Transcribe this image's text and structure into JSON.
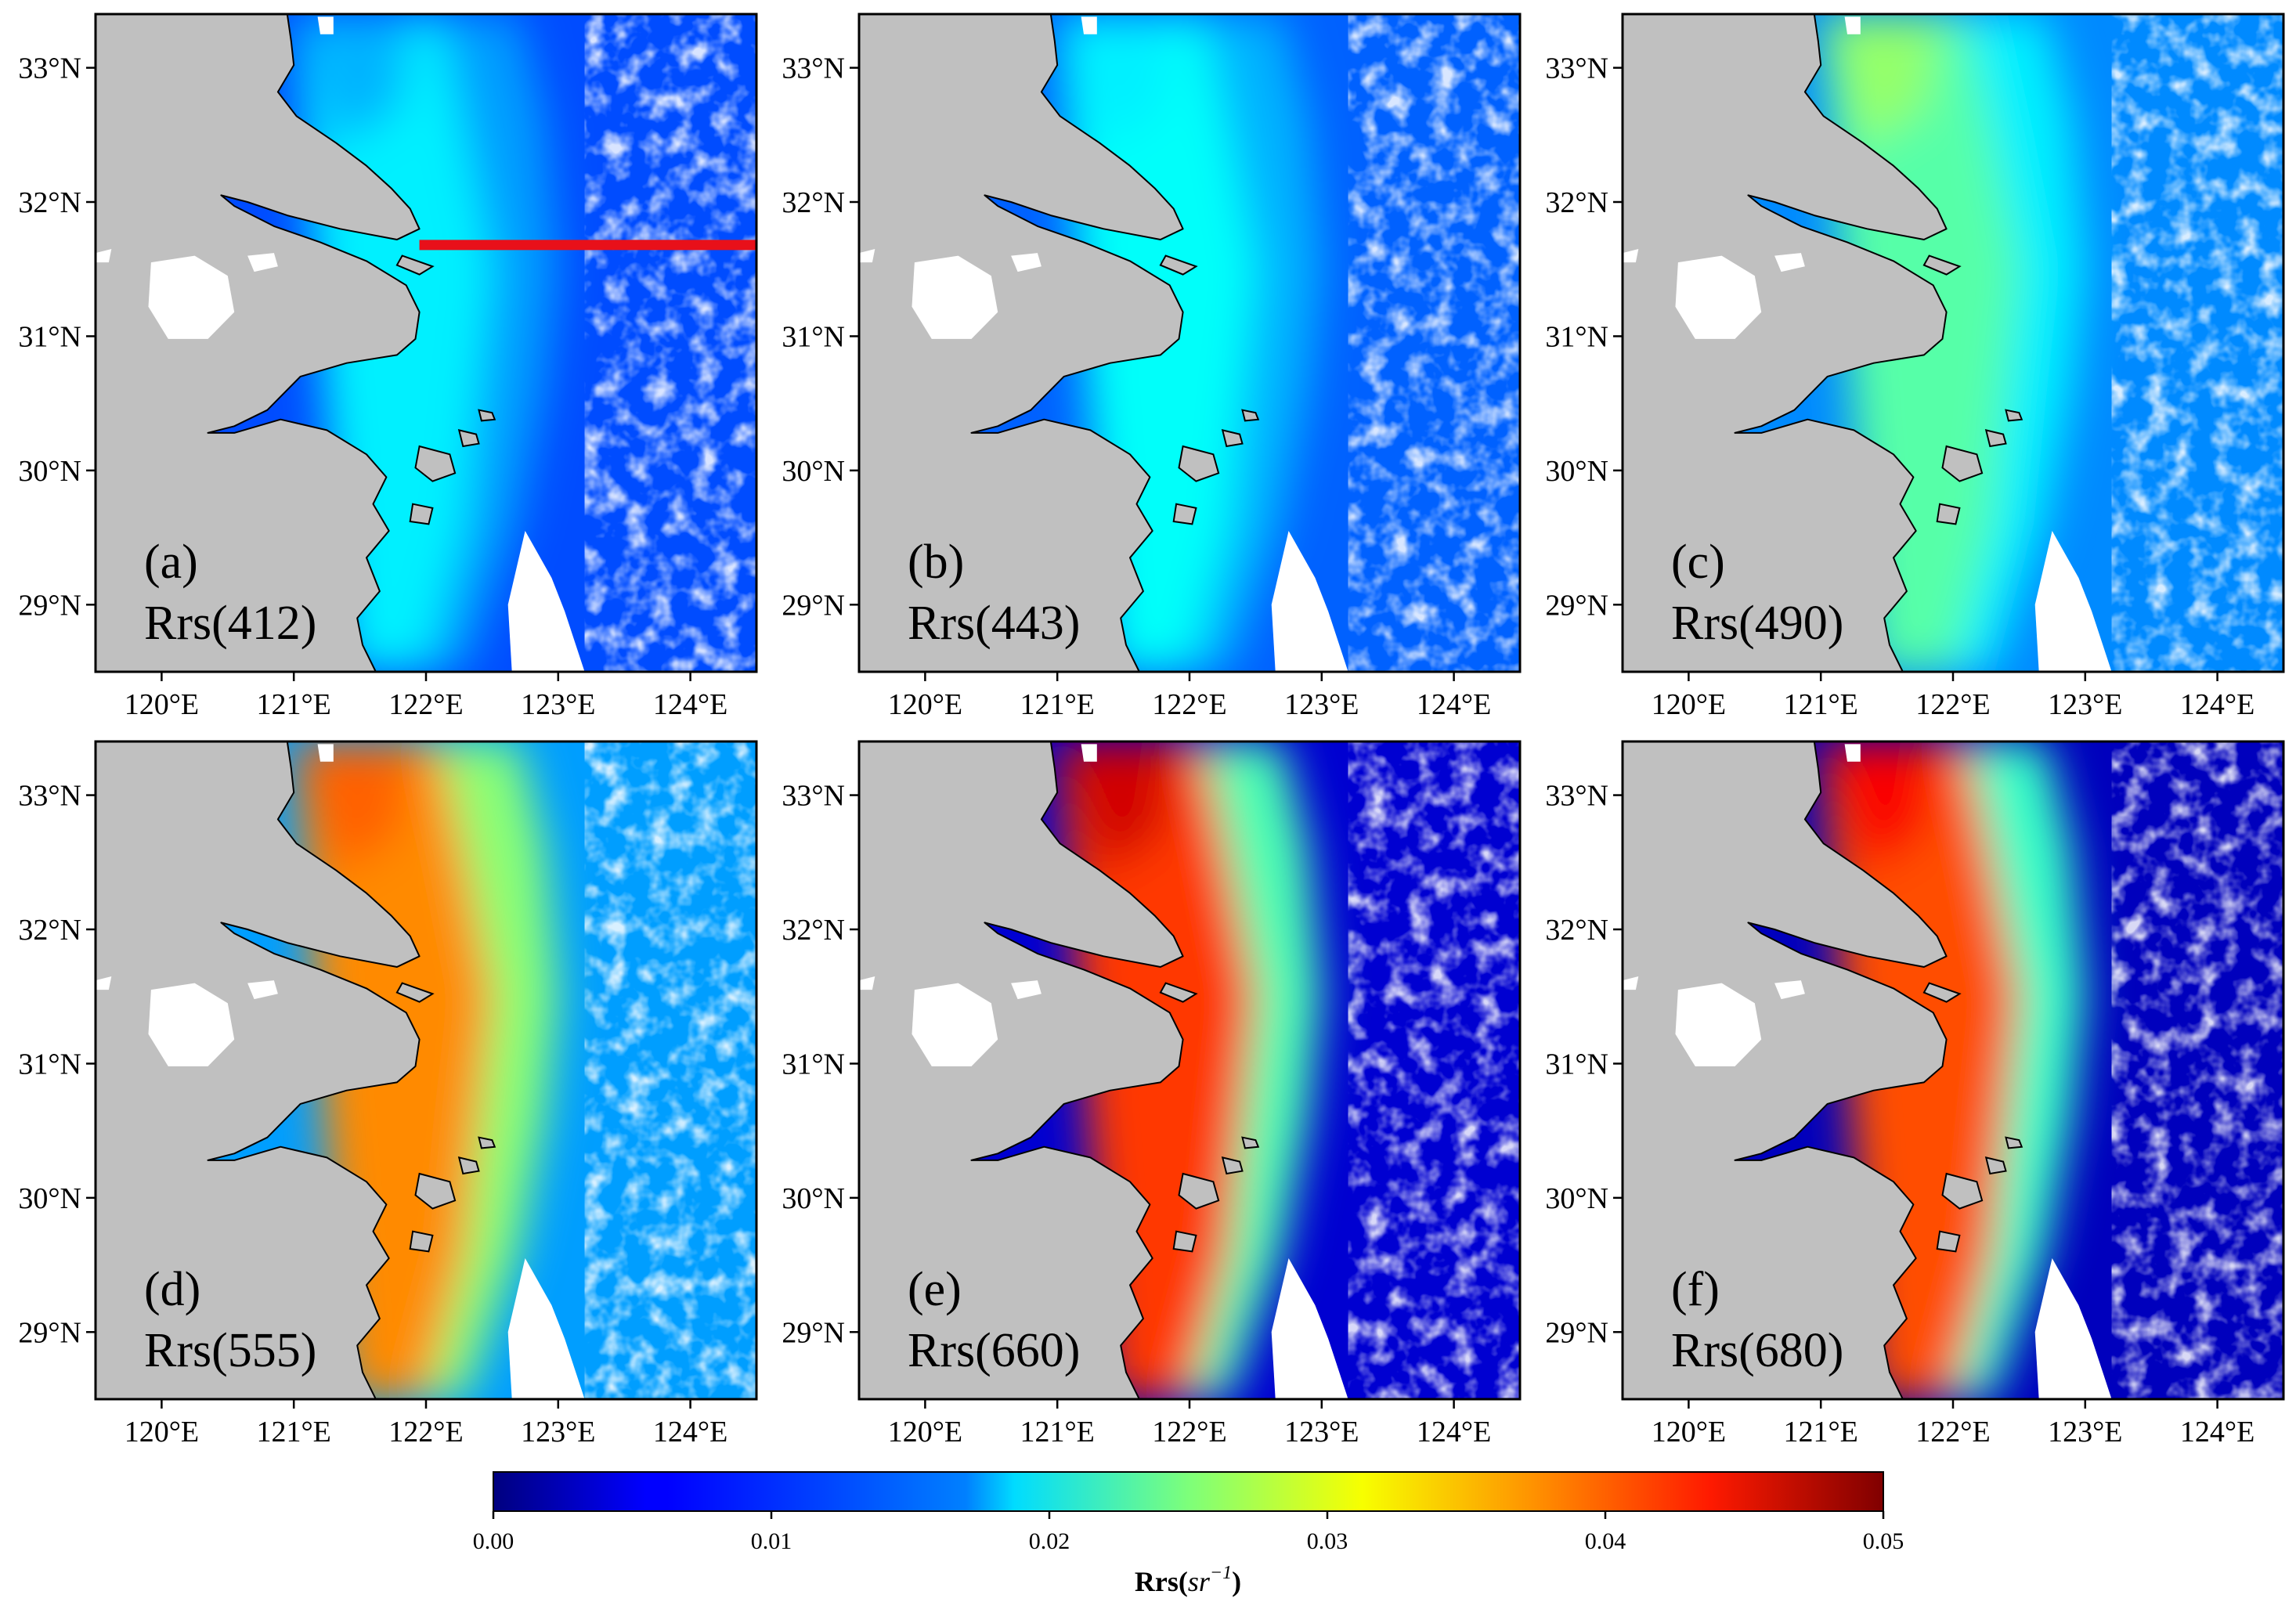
{
  "figure": {
    "lon_ticks": [
      "120°E",
      "121°E",
      "122°E",
      "123°E",
      "124°E"
    ],
    "lat_ticks": [
      "33°N",
      "32°N",
      "31°N",
      "30°N",
      "29°N"
    ],
    "lon_values": [
      120,
      121,
      122,
      123,
      124
    ],
    "lat_values": [
      33,
      32,
      31,
      30,
      29
    ],
    "lon_range": [
      119.5,
      124.5
    ],
    "lat_range": [
      28.5,
      33.4
    ],
    "panels": [
      {
        "id": "a",
        "label": "(a)",
        "band": "Rrs(412)",
        "offshore_level": 0.01,
        "plume_level": 0.018,
        "north_level": 0.015
      },
      {
        "id": "b",
        "label": "(b)",
        "band": "Rrs(443)",
        "offshore_level": 0.011,
        "plume_level": 0.019,
        "north_level": 0.018
      },
      {
        "id": "c",
        "label": "(c)",
        "band": "Rrs(490)",
        "offshore_level": 0.013,
        "plume_level": 0.023,
        "north_level": 0.026
      },
      {
        "id": "d",
        "label": "(d)",
        "band": "Rrs(555)",
        "offshore_level": 0.014,
        "plume_level": 0.037,
        "north_level": 0.039
      },
      {
        "id": "e",
        "label": "(e)",
        "band": "Rrs(660)",
        "offshore_level": 0.004,
        "plume_level": 0.041,
        "north_level": 0.046
      },
      {
        "id": "f",
        "label": "(f)",
        "band": "Rrs(680)",
        "offshore_level": 0.003,
        "plume_level": 0.04,
        "north_level": 0.044
      }
    ],
    "transect": {
      "panel": "a",
      "lat": 31.68,
      "lon_start": 121.95,
      "lon_end": 124.5,
      "color": "#e8101a"
    },
    "colorbar": {
      "min": 0.0,
      "max": 0.05,
      "tick_labels": [
        "0.00",
        "0.01",
        "0.02",
        "0.03",
        "0.04",
        "0.05"
      ],
      "title_prefix": "Rrs(",
      "title_unit": "sr",
      "title_exponent": "−1",
      "title_suffix": ")",
      "colormap": "jet"
    },
    "colors": {
      "land": "#c0c0c0",
      "coast": "#000000",
      "mask": "#ffffff"
    }
  }
}
